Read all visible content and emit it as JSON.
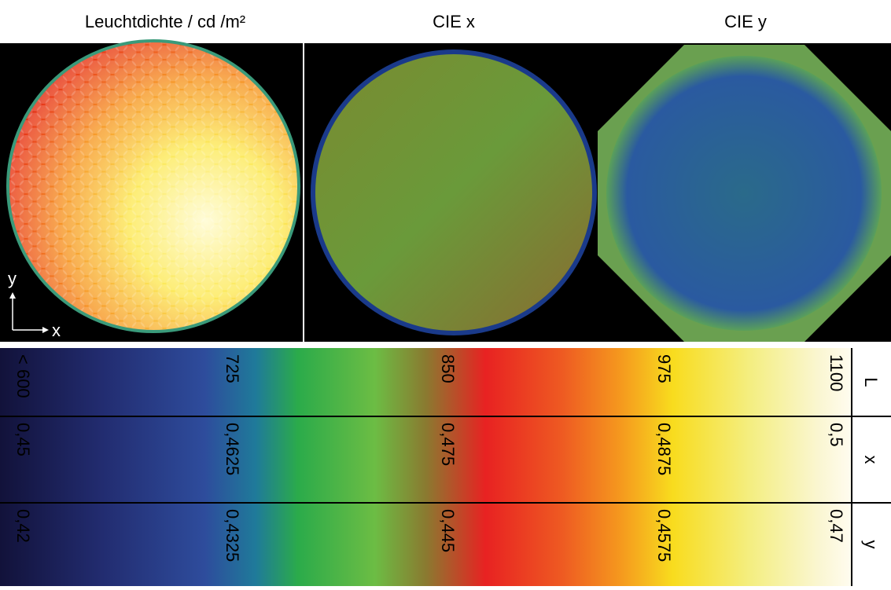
{
  "panels": [
    {
      "title": "Leuchtdichte / cd /m²"
    },
    {
      "title": "CIE x"
    },
    {
      "title": "CIE y"
    }
  ],
  "axes": {
    "y": "y",
    "x": "x"
  },
  "colorbar": {
    "rows": [
      {
        "name": "L",
        "labels": [
          "< 600",
          "725",
          "850",
          "975",
          "1100"
        ]
      },
      {
        "name": "x",
        "labels": [
          "0,45",
          "0,4625",
          "0,475",
          "0,4875",
          "0,5"
        ]
      },
      {
        "name": "y",
        "labels": [
          "0,42",
          "0,4325",
          "0,445",
          "0,4575",
          "0,47"
        ]
      }
    ]
  }
}
